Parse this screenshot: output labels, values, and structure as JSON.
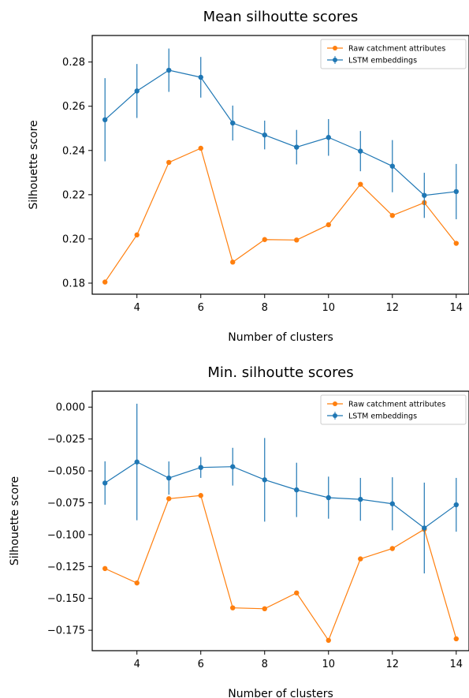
{
  "chart_data": [
    {
      "type": "line",
      "title": "Mean silhoutte scores",
      "xlabel": "Number of clusters",
      "ylabel": "Silhouette score",
      "xlim": [
        2.6,
        14.4
      ],
      "ylim": [
        0.175,
        0.292
      ],
      "x_ticks": [
        4,
        6,
        8,
        10,
        12,
        14
      ],
      "y_ticks": [
        0.18,
        0.2,
        0.22,
        0.24,
        0.26,
        0.28
      ],
      "y_tick_labels": [
        "0.18",
        "0.20",
        "0.22",
        "0.24",
        "0.26",
        "0.28"
      ],
      "legend_position": "top-right",
      "grid": false,
      "x": [
        3,
        4,
        5,
        6,
        7,
        8,
        9,
        10,
        11,
        12,
        13,
        14
      ],
      "series": [
        {
          "name": "Raw catchment attributes",
          "color": "#ff7f0e",
          "values": [
            0.1805,
            0.2018,
            0.2346,
            0.241,
            0.1895,
            0.1997,
            0.1995,
            0.2064,
            0.2247,
            0.2106,
            0.2164,
            0.198
          ],
          "errors": null
        },
        {
          "name": "LSTM embeddings",
          "color": "#1f77b4",
          "values": [
            0.2539,
            0.2669,
            0.2763,
            0.2731,
            0.2524,
            0.247,
            0.2415,
            0.2459,
            0.2397,
            0.2329,
            0.2197,
            0.2214
          ],
          "errors": [
            0.0188,
            0.0122,
            0.0098,
            0.0092,
            0.0079,
            0.0065,
            0.0078,
            0.0083,
            0.0091,
            0.0118,
            0.0102,
            0.0125
          ]
        }
      ]
    },
    {
      "type": "line",
      "title": "Min. silhoutte scores",
      "xlabel": "Number of clusters",
      "ylabel": "Silhouette score",
      "xlim": [
        2.6,
        14.4
      ],
      "ylim": [
        -0.191,
        0.0125
      ],
      "x_ticks": [
        4,
        6,
        8,
        10,
        12,
        14
      ],
      "y_ticks": [
        0.0,
        -0.025,
        -0.05,
        -0.075,
        -0.1,
        -0.125,
        -0.15,
        -0.175
      ],
      "y_tick_labels": [
        "0.000",
        "−0.025",
        "−0.050",
        "−0.075",
        "−0.100",
        "−0.125",
        "−0.150",
        "−0.175"
      ],
      "legend_position": "top-right",
      "grid": false,
      "x": [
        3,
        4,
        5,
        6,
        7,
        8,
        9,
        10,
        11,
        12,
        13,
        14
      ],
      "series": [
        {
          "name": "Raw catchment attributes",
          "color": "#ff7f0e",
          "values": [
            -0.1266,
            -0.1379,
            -0.0718,
            -0.0693,
            -0.1574,
            -0.1581,
            -0.1457,
            -0.1829,
            -0.119,
            -0.1109,
            -0.0958,
            -0.1817
          ],
          "errors": null
        },
        {
          "name": "LSTM embeddings",
          "color": "#1f77b4",
          "values": [
            -0.0595,
            -0.043,
            -0.0556,
            -0.0473,
            -0.0467,
            -0.057,
            -0.0649,
            -0.071,
            -0.0723,
            -0.0758,
            -0.0948,
            -0.0766
          ],
          "errors": [
            0.017,
            0.0457,
            0.013,
            0.0082,
            0.0148,
            0.0328,
            0.0213,
            0.0165,
            0.0168,
            0.0208,
            0.0356,
            0.0211
          ]
        }
      ]
    }
  ]
}
